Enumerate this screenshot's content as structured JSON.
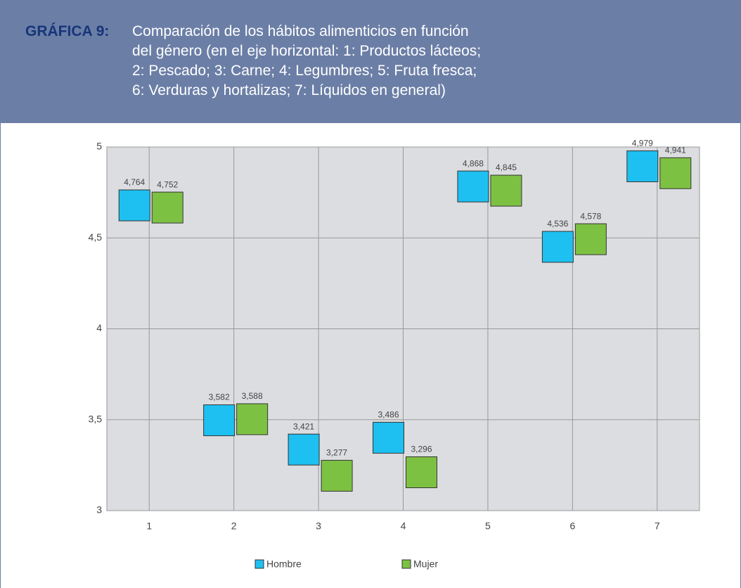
{
  "chart_data": {
    "type": "scatter",
    "title_label": "GRÁFICA 9:",
    "title_lines": [
      "Comparación de los hábitos alimenticios en función",
      "del género (en el eje horizontal: 1: Productos lácteos;",
      "2: Pescado; 3: Carne; 4: Legumbres; 5: Fruta fresca;",
      "6: Verduras y hortalizas; 7: Líquidos en general)"
    ],
    "categories": [
      "1",
      "2",
      "3",
      "4",
      "5",
      "6",
      "7"
    ],
    "series": [
      {
        "name": "Hombre",
        "color": "#1dc0f0",
        "values": [
          4.764,
          3.582,
          3.421,
          3.486,
          4.868,
          4.536,
          4.979
        ],
        "value_labels": [
          "4,764",
          "3,582",
          "3,421",
          "3,486",
          "4,868",
          "4,536",
          "4,979"
        ]
      },
      {
        "name": "Mujer",
        "color": "#7dc143",
        "values": [
          4.752,
          3.588,
          3.277,
          3.296,
          4.845,
          4.578,
          4.941
        ],
        "value_labels": [
          "4,752",
          "3,588",
          "3,277",
          "3,296",
          "4,845",
          "4,578",
          "4,941"
        ]
      }
    ],
    "ylim": [
      3,
      5
    ],
    "yticks": [
      3,
      {
        "value": 3.5,
        "label": "3,5"
      },
      4,
      {
        "value": 4.5,
        "label": "4,5"
      },
      5
    ],
    "grid": true
  }
}
